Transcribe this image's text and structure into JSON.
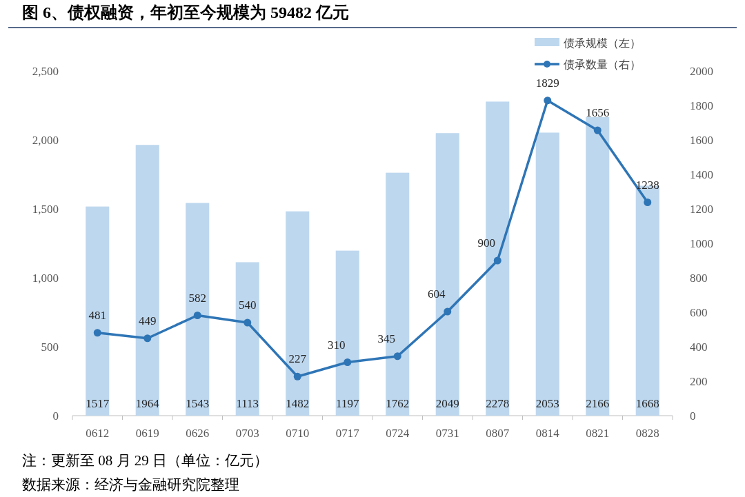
{
  "chart_data": {
    "type": "bar",
    "title": "图 6、债权融资，年初至今规模为 59482 亿元",
    "categories": [
      "0612",
      "0619",
      "0626",
      "0703",
      "0710",
      "0717",
      "0724",
      "0731",
      "0807",
      "0814",
      "0821",
      "0828"
    ],
    "series": [
      {
        "name": "债承规模（左）",
        "color": "#bdd7ee",
        "values": [
          1517,
          1964,
          1543,
          1113,
          1482,
          1197,
          1762,
          2049,
          2278,
          2053,
          2166,
          1668
        ]
      },
      {
        "name": "债承数量（右）",
        "type": "line",
        "axis": "y2",
        "marker": "circle",
        "color": "#2e75b6",
        "values": [
          481,
          449,
          582,
          540,
          227,
          310,
          345,
          604,
          900,
          1829,
          1656,
          1238
        ]
      }
    ],
    "ylim": [
      0,
      2500
    ],
    "yticks": [
      {
        "value": 0,
        "label": "0"
      },
      {
        "value": 500,
        "label": "500"
      },
      {
        "value": 1000,
        "label": "1,000"
      },
      {
        "value": 1500,
        "label": "1,500"
      },
      {
        "value": 2000,
        "label": "2,000"
      },
      {
        "value": 2500,
        "label": "2,500"
      }
    ],
    "y2lim": [
      0,
      2000
    ],
    "y2ticks": [
      0,
      200,
      400,
      600,
      800,
      1000,
      1200,
      1400,
      1600,
      1800,
      2000
    ],
    "data_labels": true,
    "legend": "top right",
    "grid": false,
    "annotations": [
      "注：更新至 08 月 29 日（单位：亿元）",
      "数据来源：经济与金融研究院整理"
    ]
  }
}
